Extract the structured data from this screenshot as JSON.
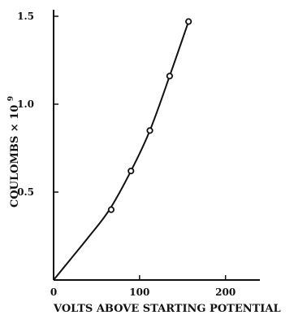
{
  "chart_data": {
    "type": "line",
    "xlabel": "VOLTS ABOVE STARTING POTENTIAL",
    "ylabel_main": "COULOMBS × 10",
    "ylabel_exponent": "9",
    "xlim": [
      0,
      240
    ],
    "ylim": [
      0,
      1.5
    ],
    "xticks": [
      0,
      100,
      200
    ],
    "xtick_labels": [
      "0",
      "100",
      "200"
    ],
    "yticks": [
      0.5,
      1.0,
      1.5
    ],
    "ytick_labels": [
      "0.5",
      "1.0",
      "1.5"
    ],
    "grid": false,
    "curve": {
      "x": [
        0,
        20,
        40,
        65,
        90,
        112,
        135,
        157
      ],
      "y": [
        0,
        0.12,
        0.24,
        0.4,
        0.62,
        0.85,
        1.16,
        1.47
      ]
    },
    "points": {
      "x": [
        67,
        90,
        112,
        135,
        157
      ],
      "y": [
        0.4,
        0.62,
        0.85,
        1.16,
        1.47
      ]
    }
  }
}
